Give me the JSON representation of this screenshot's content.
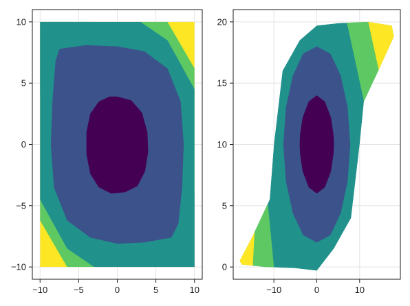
{
  "chart_data": [
    {
      "type": "filled-contour",
      "title": "",
      "xlabel": "",
      "ylabel": "",
      "xlim": [
        -11,
        11
      ],
      "ylim": [
        -11,
        11
      ],
      "grid": true,
      "xticks": [
        -10,
        -5,
        0,
        5,
        10
      ],
      "yticks": [
        -10,
        -5,
        0,
        5,
        10
      ],
      "xtick_labels": [
        "−10",
        "−5",
        "0",
        "5",
        "10"
      ],
      "ytick_labels": [
        "−10",
        "−5",
        "0",
        "5",
        "10"
      ],
      "colors": [
        "#440154",
        "#3b528b",
        "#21918c",
        "#5ec962",
        "#fde725"
      ],
      "domain": {
        "x": [
          -10,
          10
        ],
        "y": [
          -10,
          10
        ]
      },
      "regions": [
        {
          "level": 2,
          "points": [
            [
              -10,
              10
            ],
            [
              -10,
              -10
            ],
            [
              10,
              -10
            ],
            [
              10,
              10
            ]
          ]
        },
        {
          "level": 3,
          "points": [
            [
              3.5,
              10
            ],
            [
              10,
              10
            ],
            [
              10,
              8
            ],
            [
              10,
              -4.5
            ],
            [
              10,
              -10
            ],
            [
              -3.5,
              -10
            ],
            [
              -10,
              -10
            ],
            [
              -10,
              -8
            ],
            [
              -10,
              4.5
            ],
            [
              -10,
              10
            ],
            [
              -10,
              10
            ]
          ]
        },
        {
          "level": 3.5,
          "points": [
            [
              -10,
              10
            ],
            [
              -10,
              -4.5
            ],
            [
              -8,
              -7.5
            ],
            [
              -3.5,
              -10
            ],
            [
              3.5,
              -10
            ],
            [
              6,
              -10
            ],
            [
              10,
              -10
            ],
            [
              10,
              4.5
            ],
            [
              8,
              7.5
            ],
            [
              3.5,
              10
            ]
          ]
        },
        {
          "level": 2,
          "points": [
            [
              -10,
              10
            ],
            [
              -10,
              -4.5
            ],
            [
              -8,
              -7.5
            ],
            [
              -3.5,
              -10
            ],
            [
              10,
              -10
            ],
            [
              10,
              4.5
            ],
            [
              8,
              7.5
            ],
            [
              3.5,
              10
            ]
          ]
        },
        {
          "level": 1,
          "points": [
            [
              -7.5,
              7.8
            ],
            [
              -2,
              8.2
            ],
            [
              4,
              7.5
            ],
            [
              8,
              5
            ],
            [
              8.5,
              1
            ],
            [
              8,
              -4
            ],
            [
              7.5,
              -7.5
            ],
            [
              2,
              -8.2
            ],
            [
              -4,
              -7.5
            ],
            [
              -8,
              -5
            ],
            [
              -8.5,
              -1
            ],
            [
              -8,
              4
            ]
          ]
        },
        {
          "level": 0,
          "points": [
            [
              0,
              4
            ],
            [
              2.8,
              3.3
            ],
            [
              4,
              1
            ],
            [
              3.8,
              -2
            ],
            [
              2.5,
              -3.7
            ],
            [
              0,
              -4
            ],
            [
              -2.5,
              -3.5
            ],
            [
              -3.8,
              -1
            ],
            [
              -3.8,
              2
            ],
            [
              -2.5,
              3.5
            ]
          ]
        }
      ],
      "corner_bands": [
        {
          "level": 3,
          "points": [
            [
              -3.5,
              10
            ],
            [
              3.5,
              10
            ],
            [
              10,
              8
            ],
            [
              10,
              4.5
            ],
            [
              8,
              7.5
            ],
            [
              3.5,
              10
            ]
          ]
        },
        {
          "level": 4,
          "points": [
            [
              3.5,
              10
            ],
            [
              10,
              10
            ],
            [
              10,
              8
            ]
          ]
        },
        {
          "level": 3,
          "points": [
            [
              -10,
              -4.5
            ],
            [
              -10,
              -8
            ],
            [
              -3.5,
              -10
            ],
            [
              -8,
              -7.5
            ]
          ]
        },
        {
          "level": 4,
          "points": [
            [
              -10,
              -8
            ],
            [
              -10,
              -10
            ],
            [
              -3.5,
              -10
            ]
          ]
        }
      ]
    },
    {
      "type": "filled-contour",
      "title": "",
      "xlabel": "",
      "ylabel": "",
      "xlim": [
        -19.5,
        19.5
      ],
      "ylim": [
        -1,
        21
      ],
      "grid": true,
      "xticks": [
        -10,
        0,
        10
      ],
      "yticks": [
        0,
        5,
        10,
        15,
        20
      ],
      "xtick_labels": [
        "−10",
        "0",
        "10"
      ],
      "ytick_labels": [
        "0",
        "5",
        "10",
        "15",
        "20"
      ],
      "colors": [
        "#440154",
        "#3b528b",
        "#21918c",
        "#5ec962",
        "#fde725"
      ],
      "outline": [
        [
          -18,
          0.5
        ],
        [
          -15,
          2.5
        ],
        [
          -11,
          5.5
        ],
        [
          -10,
          10
        ],
        [
          -8,
          16
        ],
        [
          -4,
          18.5
        ],
        [
          0,
          19.7
        ],
        [
          5,
          19.9
        ],
        [
          12,
          20
        ],
        [
          17.5,
          19.7
        ],
        [
          18,
          18.8
        ],
        [
          15,
          16.5
        ],
        [
          11,
          13.5
        ],
        [
          10,
          10
        ],
        [
          8,
          4
        ],
        [
          4,
          1.5
        ],
        [
          0,
          -0.3
        ],
        [
          -5,
          -0.1
        ],
        [
          -12,
          0
        ],
        [
          -17.5,
          0.2
        ]
      ],
      "regions": [
        {
          "level": 2,
          "points": [
            [
              -13,
              2.2
            ],
            [
              -11,
              5.5
            ],
            [
              -10,
              10
            ],
            [
              -8,
              16
            ],
            [
              -4,
              18.5
            ],
            [
              0,
              19.7
            ],
            [
              7,
              20
            ],
            [
              10,
              15.5
            ],
            [
              11,
              13.5
            ],
            [
              10,
              10
            ],
            [
              8,
              4
            ],
            [
              4,
              1.5
            ],
            [
              0,
              -0.3
            ],
            [
              -5,
              -0.1
            ],
            [
              -10,
              0
            ]
          ]
        },
        {
          "level": 3,
          "points": [
            [
              7,
              20
            ],
            [
              12,
              20
            ],
            [
              14,
              16
            ],
            [
              11,
              13.5
            ],
            [
              10,
              15.5
            ]
          ]
        },
        {
          "level": 4,
          "points": [
            [
              12,
              20
            ],
            [
              17.5,
              19.7
            ],
            [
              18,
              18.8
            ],
            [
              15,
              16.5
            ],
            [
              14,
              16
            ]
          ]
        },
        {
          "level": 3,
          "points": [
            [
              -15.5,
              0
            ],
            [
              -13,
              2.2
            ],
            [
              -10,
              0
            ]
          ]
        },
        {
          "level": 4,
          "points": [
            [
              -18,
              0.5
            ],
            [
              -15,
              2.5
            ],
            [
              -13,
              2.2
            ],
            [
              -15.5,
              0
            ],
            [
              -17.5,
              0.2
            ]
          ]
        },
        {
          "level": 1,
          "points": [
            [
              0,
              18
            ],
            [
              4.5,
              17
            ],
            [
              7,
              14
            ],
            [
              7.8,
              10
            ],
            [
              7,
              5.5
            ],
            [
              4.5,
              2.8
            ],
            [
              0,
              2
            ],
            [
              -4.5,
              2.8
            ],
            [
              -7,
              5.5
            ],
            [
              -7.8,
              10
            ],
            [
              -7,
              14
            ],
            [
              -4.5,
              17
            ]
          ]
        },
        {
          "level": 0,
          "points": [
            [
              0,
              14
            ],
            [
              2.5,
              13.3
            ],
            [
              3.8,
              11.5
            ],
            [
              4,
              10
            ],
            [
              3.8,
              8.5
            ],
            [
              2.5,
              6.7
            ],
            [
              0,
              6
            ],
            [
              -2.5,
              6.7
            ],
            [
              -3.8,
              8.5
            ],
            [
              -4,
              10
            ],
            [
              -3.8,
              11.5
            ],
            [
              -2.5,
              13.3
            ]
          ]
        }
      ]
    }
  ]
}
